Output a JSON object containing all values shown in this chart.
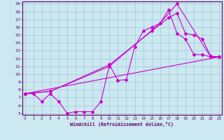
{
  "xlabel": "Windchill (Refroidissement éolien,°C)",
  "bg_color": "#cce8f0",
  "grid_color": "#a0c8d8",
  "line_color": "#cc00cc",
  "spine_color": "#660066",
  "xmin": 0,
  "xmax": 23,
  "ymin": 5,
  "ymax": 19,
  "line1_x": [
    0,
    1,
    2,
    3,
    4,
    5,
    6,
    7,
    8,
    9,
    10,
    11,
    12,
    13,
    14,
    15,
    16,
    17,
    18,
    19,
    20,
    21,
    22,
    23
  ],
  "line1_y": [
    7.5,
    7.5,
    6.5,
    7.5,
    6.5,
    5.0,
    5.2,
    5.2,
    5.2,
    6.5,
    11.2,
    9.2,
    9.3,
    13.5,
    15.5,
    16.0,
    16.5,
    18.2,
    15.2,
    14.5,
    12.5,
    12.5,
    12.2,
    12.2
  ],
  "line2_x": [
    0,
    3,
    10,
    16,
    18,
    22,
    23
  ],
  "line2_y": [
    7.5,
    7.8,
    11.0,
    16.5,
    19.0,
    12.2,
    12.2
  ],
  "line3_x": [
    0,
    3,
    10,
    15,
    17,
    18,
    19,
    20,
    21,
    22,
    23
  ],
  "line3_y": [
    7.5,
    7.8,
    11.2,
    15.5,
    17.2,
    17.8,
    15.2,
    15.0,
    14.5,
    12.3,
    12.2
  ],
  "line4_x": [
    0,
    23
  ],
  "line4_y": [
    7.5,
    12.2
  ]
}
